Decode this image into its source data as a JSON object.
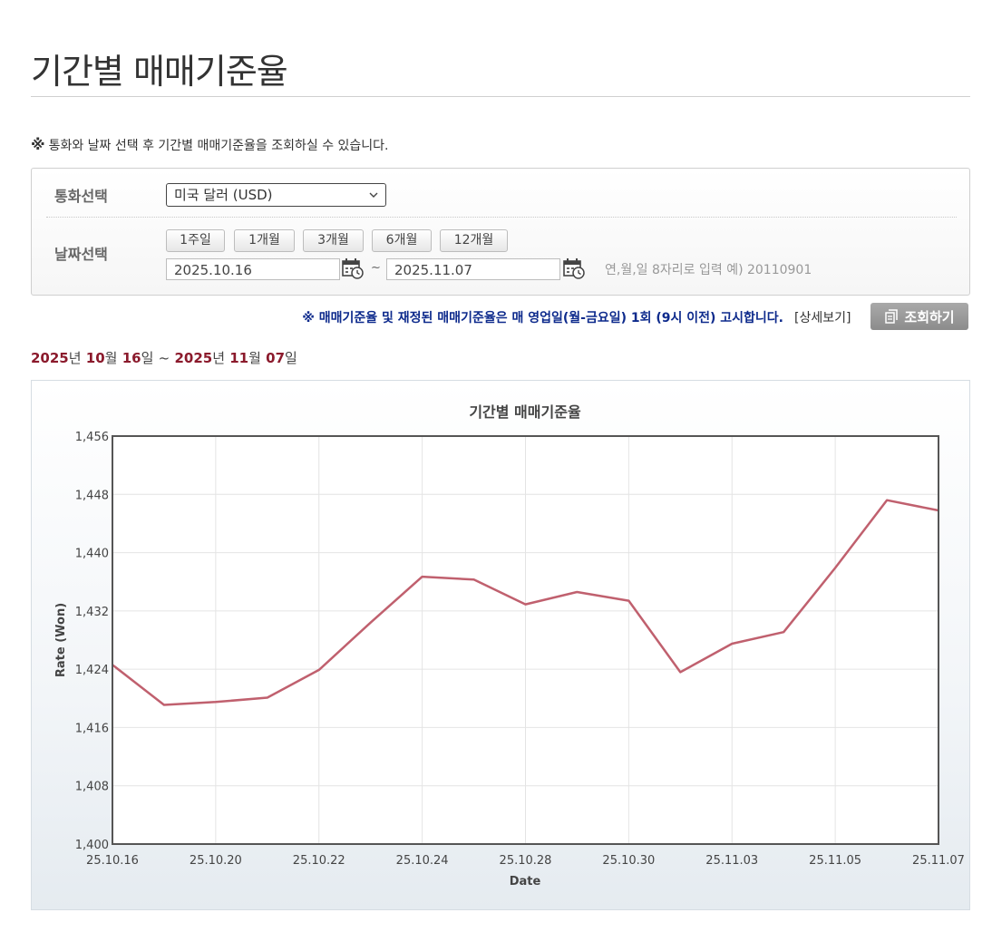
{
  "header": {
    "title": "기간별 매매기준율"
  },
  "notice": {
    "mark": "※",
    "text": "통화와 날짜 선택 후 기간별 매매기준율을 조회하실 수 있습니다."
  },
  "form": {
    "currency_label": "통화선택",
    "currency_value": "미국 달러 (USD)",
    "date_label": "날짜선택",
    "period_buttons": [
      "1주일",
      "1개월",
      "3개월",
      "6개월",
      "12개월"
    ],
    "start_date": "2025.10.16",
    "tilde": "~",
    "end_date": "2025.11.07",
    "date_hint": "연,월,일 8자리로 입력 예) 20110901"
  },
  "publish_notice": "※ 매매기준율 및 재정된 매매기준율은 매 영업일(월-금요일) 1회 (9시 이전) 고시합니다.",
  "detail_link": "[상세보기]",
  "query_button": "조회하기",
  "range": {
    "start_year": "2025",
    "start_month": "10",
    "start_day": "16",
    "end_year": "2025",
    "end_month": "11",
    "end_day": "07",
    "year_unit": "년",
    "month_unit": "월",
    "day_unit": "일",
    "sep": "~"
  },
  "colors": {
    "line": "#c0606e",
    "range_accent": "#8b1a2c",
    "notice_blue": "#0d2a8c"
  },
  "chart_data": {
    "type": "line",
    "title": "기간별 매매기준율",
    "xlabel": "Date",
    "ylabel": "Rate (Won)",
    "ylim": [
      1400,
      1456
    ],
    "y_ticks": [
      "1,456",
      "1,448",
      "1,440",
      "1,432",
      "1,424",
      "1,416",
      "1,408",
      "1,400"
    ],
    "x_ticks": [
      "25.10.16",
      "25.10.20",
      "25.10.22",
      "25.10.24",
      "25.10.28",
      "25.10.30",
      "25.11.03",
      "25.11.05",
      "25.11.07"
    ],
    "x": [
      "25.10.16",
      "25.10.17",
      "25.10.20",
      "25.10.21",
      "25.10.22",
      "25.10.23",
      "25.10.24",
      "25.10.27",
      "25.10.28",
      "25.10.29",
      "25.10.30",
      "25.10.31",
      "25.11.03",
      "25.11.04",
      "25.11.05",
      "25.11.06",
      "25.11.07"
    ],
    "values": [
      1424.6,
      1419.1,
      1419.5,
      1420.1,
      1423.9,
      1430.4,
      1436.7,
      1436.3,
      1432.9,
      1434.6,
      1433.4,
      1423.6,
      1427.5,
      1429.1,
      1437.9,
      1447.2,
      1445.8
    ],
    "grid": true,
    "legend": "none"
  }
}
